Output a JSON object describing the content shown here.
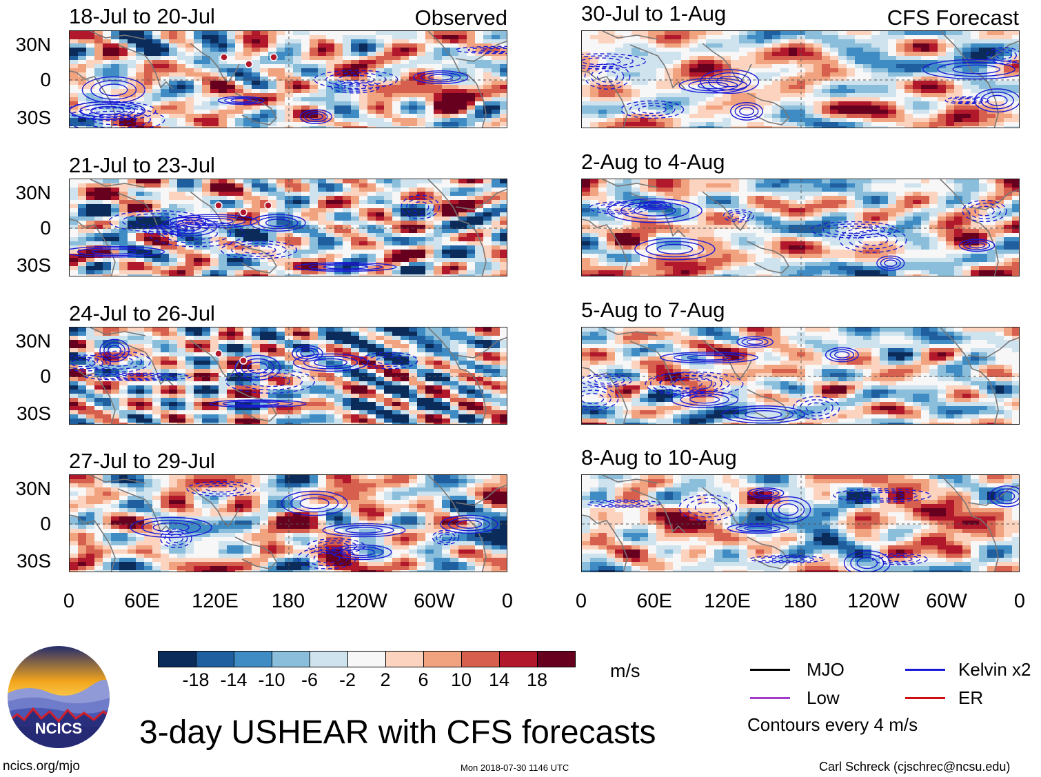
{
  "chart_data": {
    "type": "heatmap",
    "title": "3-day USHEAR with CFS forecasts",
    "column_headers": [
      "Observed",
      "CFS Forecast"
    ],
    "panels": [
      {
        "column": "observed",
        "title": "18-Jul to 20-Jul"
      },
      {
        "column": "observed",
        "title": "21-Jul to 23-Jul"
      },
      {
        "column": "observed",
        "title": "24-Jul to 26-Jul"
      },
      {
        "column": "observed",
        "title": "27-Jul to 29-Jul"
      },
      {
        "column": "forecast",
        "title": "30-Jul to 1-Aug"
      },
      {
        "column": "forecast",
        "title": "2-Aug to 4-Aug"
      },
      {
        "column": "forecast",
        "title": "5-Aug to 7-Aug"
      },
      {
        "column": "forecast",
        "title": "8-Aug to 10-Aug"
      }
    ],
    "lat_ticks": [
      "30N",
      "0",
      "30S"
    ],
    "lon_ticks": [
      "0",
      "60E",
      "120E",
      "180",
      "120W",
      "60W",
      "0"
    ],
    "colorbar": {
      "units": "m/s",
      "ticks": [
        "-18",
        "-14",
        "-10",
        "-6",
        "-2",
        "2",
        "6",
        "10",
        "14",
        "18"
      ],
      "colors": [
        "#0b2b5a",
        "#1f5fa0",
        "#3f8cc4",
        "#8bbedb",
        "#cfe3ef",
        "#f7f7f7",
        "#fbd3bf",
        "#f1a27f",
        "#d6604d",
        "#b2182b",
        "#67001f"
      ]
    },
    "contour_legend": [
      {
        "label": "MJO",
        "color": "#000000"
      },
      {
        "label": "Kelvin x2",
        "color": "#1a1ad6"
      },
      {
        "label": "Low",
        "color": "#a23ad0"
      },
      {
        "label": "ER",
        "color": "#d01010"
      }
    ],
    "contour_note": "Contours every 4 m/s"
  },
  "footer": {
    "website": "ncics.org/mjo",
    "timestamp": "Mon 2018-07-30 1146 UTC",
    "author": "Carl Schreck (cjschrec@ncsu.edu)"
  },
  "logo": {
    "text": "NCICS"
  }
}
